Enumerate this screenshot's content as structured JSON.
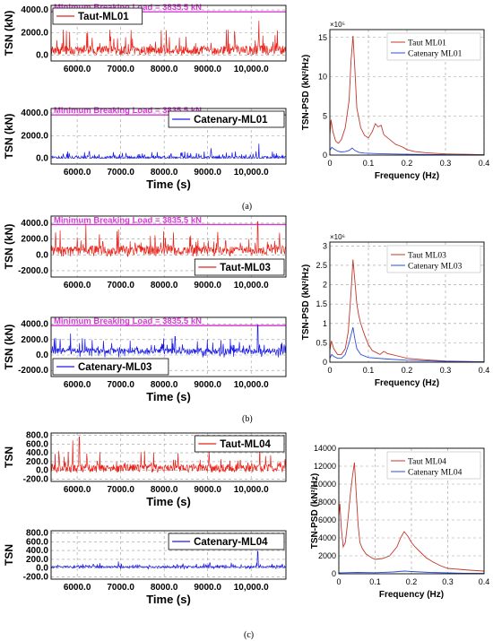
{
  "captions": [
    "(a)",
    "(b)",
    "(c)"
  ],
  "colors": {
    "taut": "#e8231a",
    "catenary": "#1a1ae8",
    "mbl": "#d63ad6",
    "psd_taut": "#c0392b",
    "psd_catenary": "#2b4fd8"
  },
  "chart_data": [
    {
      "id": "a-taut-ts",
      "type": "line",
      "ylabel": "TSN (kN)",
      "xlabel": "",
      "yticks": [
        "0.0",
        "2000.0",
        "4000.0"
      ],
      "ylim": [
        -500,
        4400
      ],
      "xticks": [
        "6000.0",
        "7000.0",
        "8000.0",
        "9000.0",
        "10,000.0"
      ],
      "xtick_values": [
        6000,
        7000,
        8000,
        9000,
        10000
      ],
      "xlim": [
        5400,
        10800
      ],
      "mbl_label": "Minimum Breaking Load = 3835.5 kN",
      "mbl_value": 3835.5,
      "legend": "Taut-ML01",
      "legend_pos": "top-left",
      "series": [
        {
          "name": "Taut-ML01",
          "color": "taut",
          "base": 450,
          "amp": 1150,
          "spikes": [
            [
              8050,
              2200
            ],
            [
              10180,
              3050
            ]
          ],
          "noise_floor": 80
        }
      ]
    },
    {
      "id": "a-catenary-ts",
      "type": "line",
      "ylabel": "TSN (kN)",
      "xlabel": "Time (s)",
      "yticks": [
        "0.0",
        "2000.0",
        "4000.0"
      ],
      "ylim": [
        -500,
        4400
      ],
      "xticks": [
        "6000.0",
        "7000.0",
        "8000.0",
        "9000.0",
        "10,000.0"
      ],
      "xtick_values": [
        6000,
        7000,
        8000,
        9000,
        10000
      ],
      "xlim": [
        5400,
        10800
      ],
      "mbl_label": "Minimum Breaking Load = 3835.5 kN",
      "mbl_value": 3835.5,
      "legend": "Catenary-ML01",
      "legend_pos": "top-right",
      "series": [
        {
          "name": "Catenary-ML01",
          "color": "catenary",
          "base": 80,
          "amp": 350,
          "spikes": [
            [
              10180,
              1300
            ],
            [
              9080,
              900
            ]
          ],
          "noise_floor": 20
        }
      ]
    },
    {
      "id": "a-psd",
      "type": "line",
      "ylabel": "TSN-PSD (kN²/Hz)",
      "xlabel": "Frequency (Hz)",
      "exponent": "×10⁵",
      "yticks": [
        "0",
        "5",
        "10",
        "15"
      ],
      "ytick_values": [
        0,
        5,
        10,
        15
      ],
      "ylim": [
        0,
        16
      ],
      "xticks": [
        "0",
        "0.1",
        "0.2",
        "0.3",
        "0.4"
      ],
      "xtick_values": [
        0,
        0.1,
        0.2,
        0.3,
        0.4
      ],
      "xlim": [
        0,
        0.4
      ],
      "legend_pos": "top-right",
      "series": [
        {
          "name": "Taut ML01",
          "color": "psd_taut",
          "x": [
            0,
            0.003,
            0.008,
            0.015,
            0.022,
            0.03,
            0.04,
            0.05,
            0.055,
            0.06,
            0.065,
            0.07,
            0.08,
            0.09,
            0.1,
            0.11,
            0.118,
            0.125,
            0.133,
            0.14,
            0.15,
            0.16,
            0.17,
            0.18,
            0.19,
            0.2,
            0.22,
            0.25,
            0.3,
            0.35,
            0.4
          ],
          "y": [
            2.5,
            4.5,
            3,
            1.8,
            1.5,
            2,
            3.5,
            7,
            12,
            15.2,
            11,
            6,
            3.5,
            2.5,
            2.2,
            3,
            4,
            3.6,
            3.8,
            2.6,
            2.2,
            1.8,
            1.4,
            1.2,
            1.0,
            0.7,
            0.45,
            0.3,
            0.15,
            0.1,
            0.05
          ]
        },
        {
          "name": "Catenary ML01",
          "color": "psd_catenary",
          "x": [
            0,
            0.005,
            0.01,
            0.02,
            0.03,
            0.04,
            0.05,
            0.058,
            0.065,
            0.075,
            0.09,
            0.12,
            0.15,
            0.2,
            0.3,
            0.4
          ],
          "y": [
            0.6,
            1.0,
            0.8,
            0.5,
            0.4,
            0.45,
            0.6,
            0.9,
            0.6,
            0.35,
            0.25,
            0.2,
            0.15,
            0.1,
            0.05,
            0.02
          ]
        }
      ]
    },
    {
      "id": "b-taut-ts",
      "type": "line",
      "ylabel": "TSN (kN)",
      "xlabel": "",
      "yticks": [
        "-2000.0",
        "0.0",
        "2000.0",
        "4000.0"
      ],
      "ylim": [
        -2800,
        4900
      ],
      "xticks": [
        "6000.0",
        "7000.0",
        "8000.0",
        "9000.0",
        "10,000.0"
      ],
      "xtick_values": [
        6000,
        7000,
        8000,
        9000,
        10000
      ],
      "xlim": [
        5400,
        10800
      ],
      "mbl_label": "Minimum Breaking Load = 3835.5 kN",
      "mbl_value": 3835.5,
      "legend": "Taut-ML03",
      "legend_pos": "bottom-right",
      "series": [
        {
          "name": "Taut-ML03",
          "color": "taut",
          "base": 600,
          "amp": 1600,
          "spikes": [
            [
              6200,
              3900
            ],
            [
              10150,
              4200
            ],
            [
              6950,
              3200
            ]
          ],
          "noise_floor": -200
        }
      ]
    },
    {
      "id": "b-catenary-ts",
      "type": "line",
      "ylabel": "TSN (kN)",
      "xlabel": "Time (s)",
      "yticks": [
        "-2000.0",
        "0.0",
        "2000.0",
        "4000.0"
      ],
      "ylim": [
        -2800,
        4900
      ],
      "xticks": [
        "6000.0",
        "7000.0",
        "8000.0",
        "9000.0",
        "10,000.0"
      ],
      "xtick_values": [
        6000,
        7000,
        8000,
        9000,
        10000
      ],
      "xlim": [
        5400,
        10800
      ],
      "mbl_label": "Minimum Breaking Load = 3835.5 kN",
      "mbl_value": 3835.5,
      "legend": "Catenary-ML03",
      "legend_pos": "bottom-left",
      "series": [
        {
          "name": "Catenary-ML03",
          "color": "catenary",
          "base": 500,
          "amp": 1100,
          "spikes": [
            [
              10150,
              3900
            ],
            [
              5850,
              2800
            ],
            [
              8250,
              2400
            ]
          ],
          "noise_floor": -300
        }
      ]
    },
    {
      "id": "b-psd",
      "type": "line",
      "ylabel": "TSN-PSD (kN²/Hz)",
      "xlabel": "Frequency (Hz)",
      "exponent": "×10⁶",
      "yticks": [
        "0",
        "0.5",
        "1",
        "1.5",
        "2",
        "2.5",
        "3"
      ],
      "ytick_values": [
        0,
        0.5,
        1,
        1.5,
        2,
        2.5,
        3
      ],
      "ylim": [
        0,
        3.1
      ],
      "xticks": [
        "0",
        "0.1",
        "0.2",
        "0.3",
        "0.4"
      ],
      "xtick_values": [
        0,
        0.1,
        0.2,
        0.3,
        0.4
      ],
      "xlim": [
        0,
        0.4
      ],
      "legend_pos": "top-right",
      "series": [
        {
          "name": "Taut ML03",
          "color": "psd_taut",
          "x": [
            0,
            0.004,
            0.01,
            0.02,
            0.03,
            0.04,
            0.048,
            0.055,
            0.06,
            0.065,
            0.07,
            0.075,
            0.08,
            0.09,
            0.1,
            0.11,
            0.12,
            0.13,
            0.14,
            0.15,
            0.16,
            0.18,
            0.2,
            0.25,
            0.3,
            0.4
          ],
          "y": [
            0.3,
            0.55,
            0.35,
            0.2,
            0.2,
            0.35,
            0.8,
            1.8,
            2.65,
            2.1,
            1.5,
            1.2,
            1.0,
            0.7,
            0.45,
            0.3,
            0.25,
            0.2,
            0.28,
            0.22,
            0.2,
            0.15,
            0.1,
            0.06,
            0.03,
            0.01
          ]
        },
        {
          "name": "Catenary ML03",
          "color": "psd_catenary",
          "x": [
            0,
            0.005,
            0.01,
            0.02,
            0.03,
            0.04,
            0.05,
            0.055,
            0.06,
            0.065,
            0.07,
            0.08,
            0.1,
            0.15,
            0.2,
            0.3,
            0.4
          ],
          "y": [
            0.1,
            0.2,
            0.15,
            0.1,
            0.1,
            0.2,
            0.5,
            0.7,
            0.9,
            0.6,
            0.35,
            0.2,
            0.12,
            0.08,
            0.05,
            0.02,
            0.01
          ]
        }
      ]
    },
    {
      "id": "c-taut-ts",
      "type": "line",
      "ylabel": "TSN",
      "xlabel": "Time (s)",
      "yticks": [
        "-200.0",
        "0.0",
        "200.0",
        "400.0",
        "600.0",
        "800.0"
      ],
      "ylim": [
        -250,
        850
      ],
      "xticks": [
        "6000.0",
        "7000.0",
        "8000.0",
        "9000.0",
        "10,000.0"
      ],
      "xtick_values": [
        6000,
        7000,
        8000,
        9000,
        10000
      ],
      "xlim": [
        5400,
        10800
      ],
      "legend": "Taut-ML04",
      "legend_pos": "top-right",
      "series": [
        {
          "name": "Taut-ML04",
          "color": "taut",
          "base": 60,
          "amp": 250,
          "spikes": [
            [
              6050,
              760
            ],
            [
              5900,
              680
            ],
            [
              10200,
              620
            ]
          ],
          "noise_floor": -40
        }
      ]
    },
    {
      "id": "c-catenary-ts",
      "type": "line",
      "ylabel": "TSN",
      "xlabel": "Time (s)",
      "yticks": [
        "-200.0",
        "0.0",
        "200.0",
        "400.0",
        "600.0",
        "800.0"
      ],
      "ylim": [
        -250,
        850
      ],
      "xticks": [
        "6000.0",
        "7000.0",
        "8000.0",
        "9000.0",
        "10,000.0"
      ],
      "xtick_values": [
        6000,
        7000,
        8000,
        9000,
        10000
      ],
      "xlim": [
        5400,
        10800
      ],
      "legend": "Catenary-ML04",
      "legend_pos": "top-right",
      "series": [
        {
          "name": "Catenary-ML04",
          "color": "catenary",
          "base": 30,
          "amp": 60,
          "spikes": [
            [
              10150,
              380
            ],
            [
              6950,
              150
            ],
            [
              9050,
              120
            ]
          ],
          "noise_floor": -30
        }
      ]
    },
    {
      "id": "c-psd",
      "type": "line",
      "ylabel": "TSN-PSD (kN²/Hz)",
      "xlabel": "Frequency (Hz)",
      "yticks": [
        "0",
        "2000",
        "4000",
        "6000",
        "8000",
        "10000",
        "12000",
        "14000"
      ],
      "ytick_values": [
        0,
        2000,
        4000,
        6000,
        8000,
        10000,
        12000,
        14000
      ],
      "ylim": [
        0,
        14000
      ],
      "xticks": [
        "0",
        "0.1",
        "0.2",
        "0.3",
        "0.4"
      ],
      "xtick_values": [
        0,
        0.1,
        0.2,
        0.3,
        0.4
      ],
      "xlim": [
        0,
        0.4
      ],
      "legend_pos": "top-right",
      "series": [
        {
          "name": "Taut ML04",
          "color": "psd_taut",
          "x": [
            0,
            0.003,
            0.007,
            0.012,
            0.018,
            0.025,
            0.032,
            0.038,
            0.043,
            0.048,
            0.053,
            0.058,
            0.065,
            0.075,
            0.09,
            0.1,
            0.12,
            0.14,
            0.16,
            0.17,
            0.18,
            0.19,
            0.2,
            0.21,
            0.22,
            0.24,
            0.26,
            0.28,
            0.3,
            0.33,
            0.36,
            0.4
          ],
          "y": [
            6500,
            7800,
            5000,
            3000,
            3500,
            6000,
            9000,
            11000,
            12400,
            9000,
            5500,
            3500,
            2800,
            2200,
            1800,
            1600,
            1700,
            2000,
            3000,
            4000,
            4700,
            4200,
            3500,
            3000,
            2600,
            1800,
            1300,
            900,
            600,
            500,
            400,
            300
          ]
        },
        {
          "name": "Catenary ML04",
          "color": "psd_catenary",
          "x": [
            0,
            0.05,
            0.1,
            0.15,
            0.18,
            0.2,
            0.25,
            0.3,
            0.35,
            0.4
          ],
          "y": [
            100,
            150,
            120,
            200,
            300,
            250,
            150,
            100,
            60,
            40
          ]
        }
      ]
    }
  ]
}
